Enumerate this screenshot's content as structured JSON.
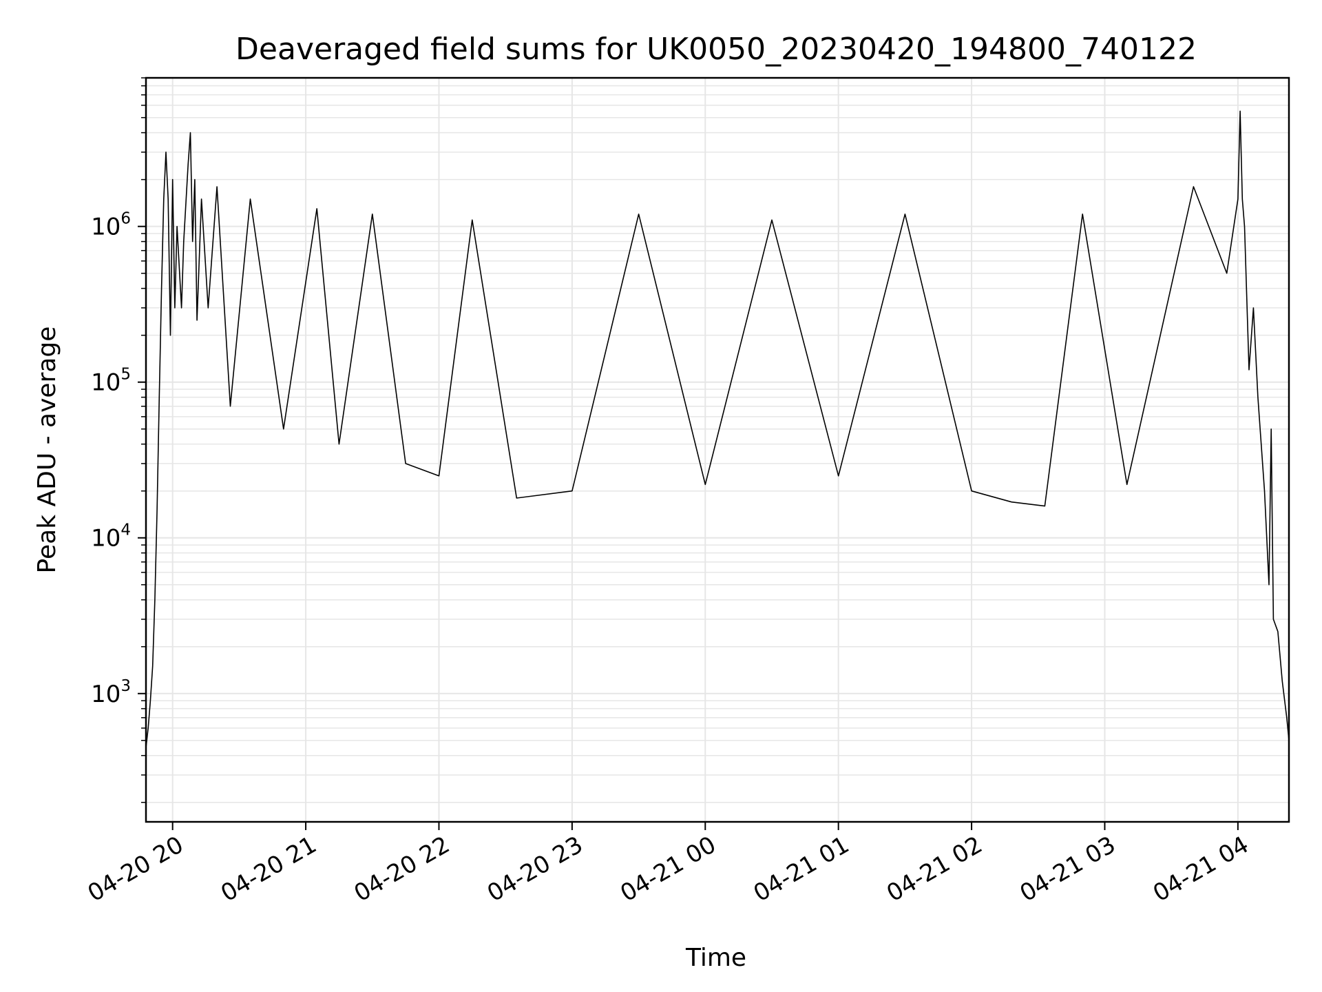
{
  "chart_data": {
    "type": "line",
    "title": "Deaveraged field sums for UK0050_20230420_194800_740122",
    "xlabel": "Time",
    "ylabel": "Peak ADU - average",
    "yscale": "log",
    "ylim": [
      150,
      9000000
    ],
    "xlim": [
      "2023-04-20 19:48",
      "2023-04-21 04:23"
    ],
    "grid": true,
    "grid_color": "#e6e6e6",
    "line_color": "#000000",
    "x_ticks": [
      {
        "t": "2023-04-20 20:00",
        "label": "04-20 20"
      },
      {
        "t": "2023-04-20 21:00",
        "label": "04-20 21"
      },
      {
        "t": "2023-04-20 22:00",
        "label": "04-20 22"
      },
      {
        "t": "2023-04-20 23:00",
        "label": "04-20 23"
      },
      {
        "t": "2023-04-21 00:00",
        "label": "04-21 00"
      },
      {
        "t": "2023-04-21 01:00",
        "label": "04-21 01"
      },
      {
        "t": "2023-04-21 02:00",
        "label": "04-21 02"
      },
      {
        "t": "2023-04-21 03:00",
        "label": "04-21 03"
      },
      {
        "t": "2023-04-21 04:00",
        "label": "04-21 04"
      }
    ],
    "y_ticks": [
      {
        "value": 1000,
        "base": "10",
        "exp": "3"
      },
      {
        "value": 10000,
        "base": "10",
        "exp": "4"
      },
      {
        "value": 100000,
        "base": "10",
        "exp": "5"
      },
      {
        "value": 1000000,
        "base": "10",
        "exp": "6"
      }
    ],
    "series": [
      {
        "points": [
          [
            "2023-04-20 19:48",
            450
          ],
          [
            "2023-04-20 19:49",
            600
          ],
          [
            "2023-04-20 19:50",
            900
          ],
          [
            "2023-04-20 19:51",
            1500
          ],
          [
            "2023-04-20 19:52",
            4000
          ],
          [
            "2023-04-20 19:53",
            15000
          ],
          [
            "2023-04-20 19:54",
            80000
          ],
          [
            "2023-04-20 19:55",
            400000
          ],
          [
            "2023-04-20 19:56",
            1500000
          ],
          [
            "2023-04-20 19:57",
            3000000
          ],
          [
            "2023-04-20 19:58",
            1500000
          ],
          [
            "2023-04-20 19:59",
            200000
          ],
          [
            "2023-04-20 20:00",
            2000000
          ],
          [
            "2023-04-20 20:01",
            300000
          ],
          [
            "2023-04-20 20:02",
            1000000
          ],
          [
            "2023-04-20 20:04",
            300000
          ],
          [
            "2023-04-20 20:05",
            800000
          ],
          [
            "2023-04-20 20:07",
            2500000
          ],
          [
            "2023-04-20 20:08",
            4000000
          ],
          [
            "2023-04-20 20:09",
            800000
          ],
          [
            "2023-04-20 20:10",
            2000000
          ],
          [
            "2023-04-20 20:11",
            250000
          ],
          [
            "2023-04-20 20:13",
            1500000
          ],
          [
            "2023-04-20 20:16",
            300000
          ],
          [
            "2023-04-20 20:20",
            1800000
          ],
          [
            "2023-04-20 20:26",
            70000
          ],
          [
            "2023-04-20 20:35",
            1500000
          ],
          [
            "2023-04-20 20:50",
            50000
          ],
          [
            "2023-04-20 21:05",
            1300000
          ],
          [
            "2023-04-20 21:15",
            40000
          ],
          [
            "2023-04-20 21:30",
            1200000
          ],
          [
            "2023-04-20 21:45",
            30000
          ],
          [
            "2023-04-20 22:00",
            25000
          ],
          [
            "2023-04-20 22:15",
            1100000
          ],
          [
            "2023-04-20 22:35",
            18000
          ],
          [
            "2023-04-20 23:00",
            20000
          ],
          [
            "2023-04-20 23:30",
            1200000
          ],
          [
            "2023-04-21 00:00",
            22000
          ],
          [
            "2023-04-21 00:30",
            1100000
          ],
          [
            "2023-04-21 01:00",
            25000
          ],
          [
            "2023-04-21 01:30",
            1200000
          ],
          [
            "2023-04-21 02:00",
            20000
          ],
          [
            "2023-04-21 02:18",
            17000
          ],
          [
            "2023-04-21 02:33",
            16000
          ],
          [
            "2023-04-21 02:50",
            1200000
          ],
          [
            "2023-04-21 03:10",
            22000
          ],
          [
            "2023-04-21 03:40",
            1800000
          ],
          [
            "2023-04-21 03:55",
            500000
          ],
          [
            "2023-04-21 04:00",
            1500000
          ],
          [
            "2023-04-21 04:01",
            5500000
          ],
          [
            "2023-04-21 04:02",
            1500000
          ],
          [
            "2023-04-21 04:03",
            1000000
          ],
          [
            "2023-04-21 04:05",
            120000
          ],
          [
            "2023-04-21 04:07",
            300000
          ],
          [
            "2023-04-21 04:09",
            80000
          ],
          [
            "2023-04-21 04:12",
            20000
          ],
          [
            "2023-04-21 04:14",
            5000
          ],
          [
            "2023-04-21 04:15",
            50000
          ],
          [
            "2023-04-21 04:16",
            3000
          ],
          [
            "2023-04-21 04:18",
            2500
          ],
          [
            "2023-04-21 04:20",
            1200
          ],
          [
            "2023-04-21 04:22",
            700
          ],
          [
            "2023-04-21 04:23",
            500
          ]
        ]
      }
    ]
  }
}
